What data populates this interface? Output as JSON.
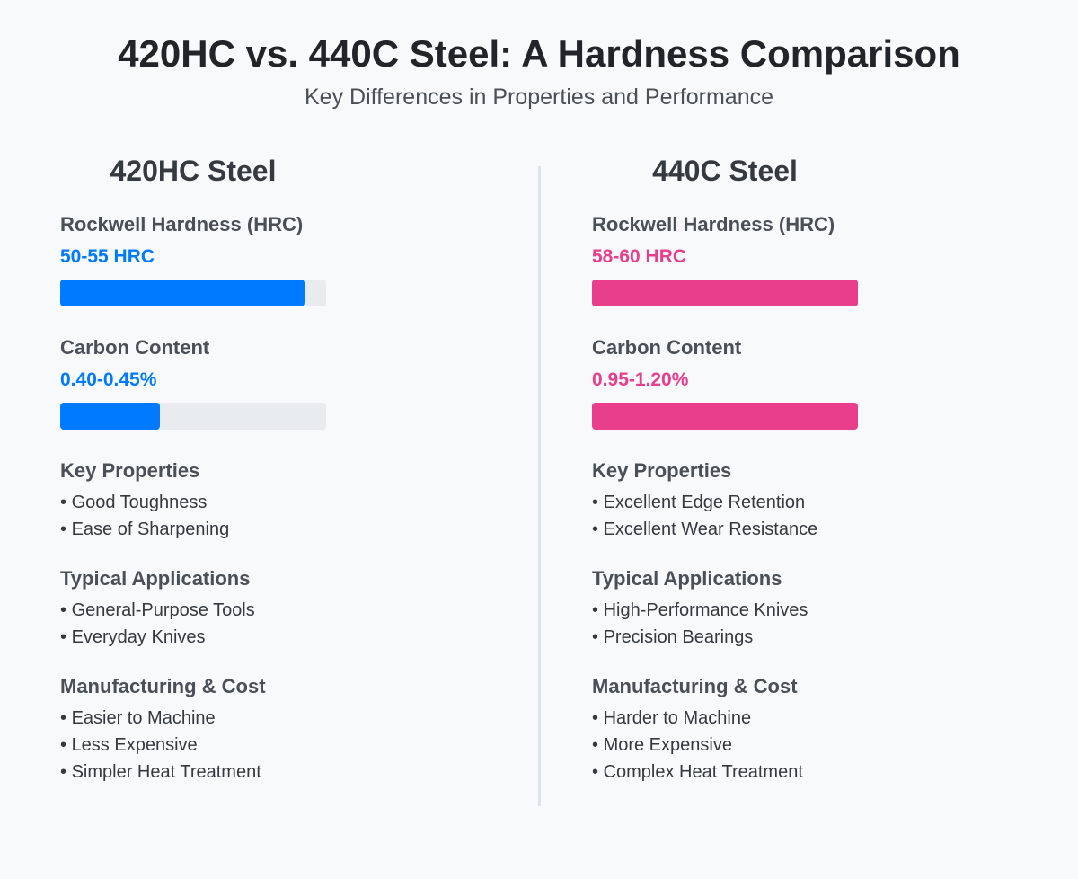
{
  "title": "420HC vs. 440C Steel: A Hardness Comparison",
  "subtitle": "Key Differences in Properties and Performance",
  "colors": {
    "left_accent": "#007bff",
    "right_accent": "#e83e8c",
    "track": "#e9ecef"
  },
  "columns": [
    {
      "title": "420HC Steel",
      "accent": "#007bff",
      "hardness": {
        "label": "Rockwell Hardness (HRC)",
        "value": "50-55 HRC",
        "fill_percent": 92
      },
      "carbon": {
        "label": "Carbon Content",
        "value": "0.40-0.45%",
        "fill_percent": 37.5
      },
      "properties": {
        "label": "Key Properties",
        "items": [
          "Good Toughness",
          "Ease of Sharpening"
        ]
      },
      "applications": {
        "label": "Typical Applications",
        "items": [
          "General-Purpose Tools",
          "Everyday Knives"
        ]
      },
      "manufacturing": {
        "label": "Manufacturing & Cost",
        "items": [
          "Easier to Machine",
          "Less Expensive",
          "Simpler Heat Treatment"
        ]
      }
    },
    {
      "title": "440C Steel",
      "accent": "#e83e8c",
      "hardness": {
        "label": "Rockwell Hardness (HRC)",
        "value": "58-60 HRC",
        "fill_percent": 100
      },
      "carbon": {
        "label": "Carbon Content",
        "value": "0.95-1.20%",
        "fill_percent": 100
      },
      "properties": {
        "label": "Key Properties",
        "items": [
          "Excellent Edge Retention",
          "Excellent Wear Resistance"
        ]
      },
      "applications": {
        "label": "Typical Applications",
        "items": [
          "High-Performance Knives",
          "Precision Bearings"
        ]
      },
      "manufacturing": {
        "label": "Manufacturing & Cost",
        "items": [
          "Harder to Machine",
          "More Expensive",
          "Complex Heat Treatment"
        ]
      }
    }
  ]
}
